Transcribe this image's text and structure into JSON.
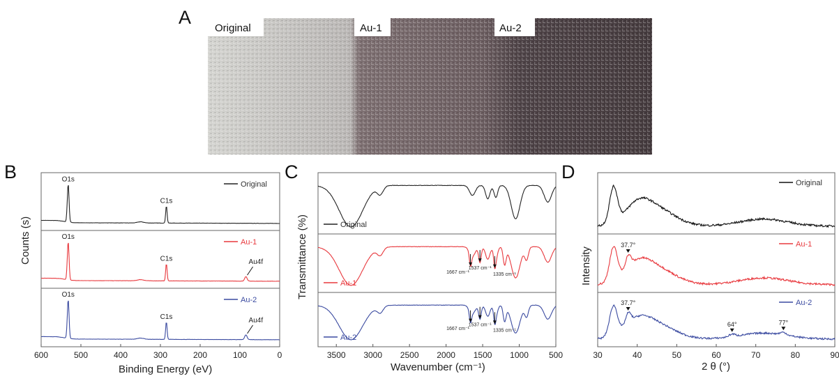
{
  "panel_labels": {
    "a": "A",
    "b": "B",
    "c": "C",
    "d": "D"
  },
  "photo": {
    "labels": [
      "Original",
      "Au-1",
      "Au-2"
    ],
    "colors": [
      "#cfcfcb",
      "#6f6264",
      "#4a3f43"
    ]
  },
  "chart_data": [
    {
      "type": "line",
      "panel": "B",
      "xlabel": "Binding Energy (eV)",
      "ylabel": "Counts (s)",
      "xlim": [
        600,
        0
      ],
      "xticks": [
        600,
        500,
        400,
        300,
        200,
        100,
        0
      ],
      "xtick_labels": [
        "600",
        "500",
        "400",
        "300",
        "200",
        "100",
        "0"
      ],
      "series": [
        {
          "name": "Original",
          "color": "#222222",
          "peaks": [
            {
              "label": "O1s",
              "x": 532
            },
            {
              "label": "C1s",
              "x": 285
            }
          ]
        },
        {
          "name": "Au-1",
          "color": "#e8383d",
          "peaks": [
            {
              "label": "O1s",
              "x": 532
            },
            {
              "label": "C1s",
              "x": 285
            },
            {
              "label": "Au4f",
              "x": 85
            }
          ]
        },
        {
          "name": "Au-2",
          "color": "#3a4aa0",
          "peaks": [
            {
              "label": "O1s",
              "x": 532
            },
            {
              "label": "C1s",
              "x": 285
            },
            {
              "label": "Au4f",
              "x": 85
            }
          ]
        }
      ]
    },
    {
      "type": "line",
      "panel": "C",
      "xlabel": "Wavenumber (cm⁻¹)",
      "ylabel": "Transmittance (%)",
      "xlim": [
        3750,
        500
      ],
      "xticks": [
        3500,
        3000,
        2500,
        2000,
        1500,
        1000,
        500
      ],
      "xtick_labels": [
        "3500",
        "3000",
        "2500",
        "2000",
        "1500",
        "1000",
        "500"
      ],
      "series": [
        {
          "name": "Original",
          "color": "#222222",
          "annotations": []
        },
        {
          "name": "Au-1",
          "color": "#e8383d",
          "annotations": [
            {
              "label": "1667 cm⁻¹",
              "x": 1667
            },
            {
              "label": "1537 cm⁻¹",
              "x": 1537
            },
            {
              "label": "1335 cm⁻¹",
              "x": 1335
            }
          ]
        },
        {
          "name": "Au-2",
          "color": "#3a4aa0",
          "annotations": [
            {
              "label": "1667 cm⁻¹",
              "x": 1667
            },
            {
              "label": "1537 cm⁻¹",
              "x": 1537
            },
            {
              "label": "1335 cm⁻¹",
              "x": 1335
            }
          ]
        }
      ]
    },
    {
      "type": "line",
      "panel": "D",
      "xlabel": "2 θ (°)",
      "ylabel": "Intensity",
      "xlim": [
        30,
        90
      ],
      "xticks": [
        30,
        40,
        50,
        60,
        70,
        80,
        90
      ],
      "xtick_labels": [
        "30",
        "40",
        "50",
        "60",
        "70",
        "80",
        "90"
      ],
      "series": [
        {
          "name": "Original",
          "color": "#111111",
          "annotations": []
        },
        {
          "name": "Au-1",
          "color": "#e8383d",
          "annotations": [
            {
              "label": "37.7°",
              "x": 37.7
            }
          ]
        },
        {
          "name": "Au-2",
          "color": "#3a4aa0",
          "annotations": [
            {
              "label": "37.7°",
              "x": 37.7
            },
            {
              "label": "64°",
              "x": 64
            },
            {
              "label": "77°",
              "x": 77
            }
          ]
        }
      ]
    }
  ]
}
